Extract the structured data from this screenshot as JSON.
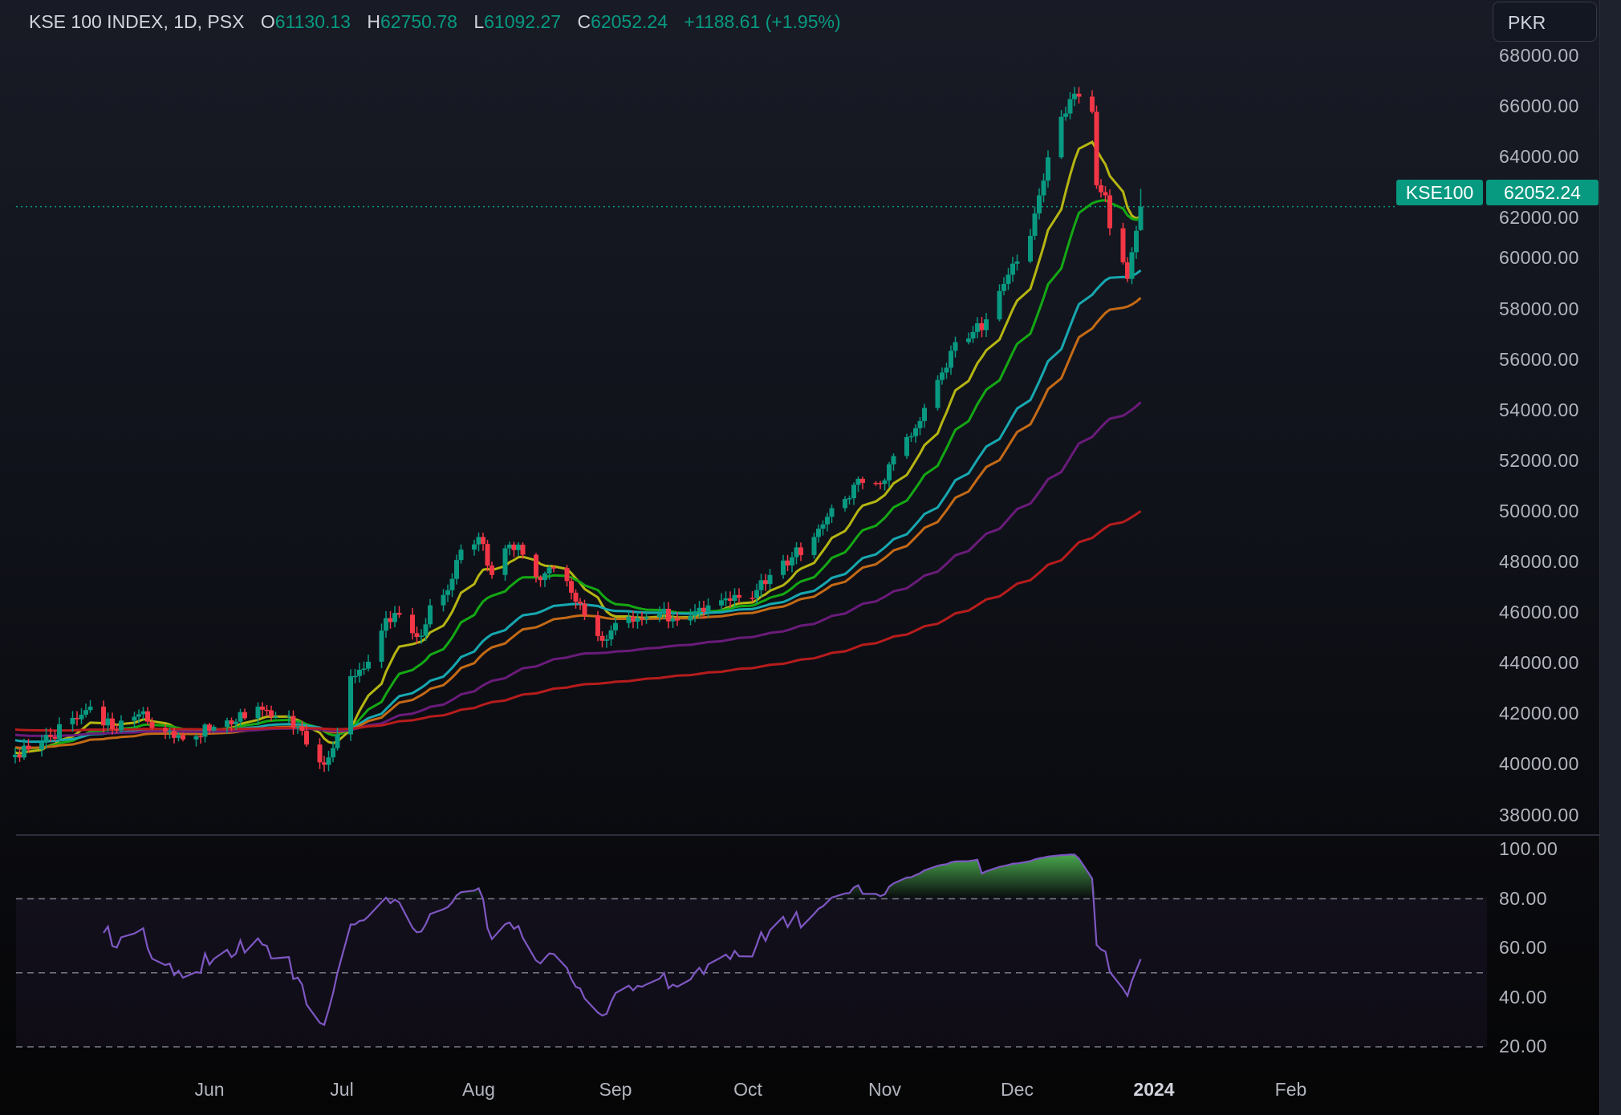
{
  "legend": {
    "symbol": "KSE 100 INDEX, 1D, PSX",
    "o_label": "O",
    "o": "61130.13",
    "h_label": "H",
    "h": "62750.78",
    "l_label": "L",
    "l": "61092.27",
    "c_label": "C",
    "c": "62052.24",
    "change": "+1188.61 (+1.95%)"
  },
  "currency_button": "PKR",
  "last_price": {
    "symbol": "KSE100",
    "value": "62052.24"
  },
  "price_axis": [
    "68000.00",
    "66000.00",
    "64000.00",
    "62000.00",
    "60000.00",
    "58000.00",
    "56000.00",
    "54000.00",
    "52000.00",
    "50000.00",
    "48000.00",
    "46000.00",
    "44000.00",
    "42000.00",
    "40000.00",
    "38000.00"
  ],
  "rsi_axis": [
    "100.00",
    "80.00",
    "60.00",
    "40.00",
    "20.00"
  ],
  "time_axis": [
    {
      "label": "Jun",
      "date": "06-01"
    },
    {
      "label": "Jul",
      "date": "07-01"
    },
    {
      "label": "Aug",
      "date": "08-01"
    },
    {
      "label": "Sep",
      "date": "09-01"
    },
    {
      "label": "Oct",
      "date": "10-01"
    },
    {
      "label": "Nov",
      "date": "11-01"
    },
    {
      "label": "Dec",
      "date": "12-01"
    },
    {
      "label": "2024",
      "date": "13-01",
      "bold": true
    },
    {
      "label": "Feb",
      "date": "14-01"
    }
  ],
  "colors": {
    "up": "#089981",
    "down": "#f23645",
    "rsi": "#7e57c2",
    "ma": [
      "#b5b512",
      "#14a814",
      "#17a8b0",
      "#c46a16",
      "#6a1b7a",
      "#b71c1c"
    ]
  },
  "chart_data": {
    "type": "candlestick",
    "ylim": [
      37000,
      69000
    ],
    "rsi_levels": [
      80,
      50,
      20
    ],
    "ma_periods": [
      10,
      20,
      40,
      50,
      100,
      200
    ],
    "ma_seed": [
      40500,
      40700,
      41000,
      40700,
      41200,
      41400
    ],
    "closes": [
      [
        "04-18",
        40400
      ],
      [
        "04-24",
        40900
      ],
      [
        "05-02",
        41800
      ],
      [
        "05-05",
        42300
      ],
      [
        "05-10",
        41400
      ],
      [
        "05-16",
        42000
      ],
      [
        "05-22",
        41300
      ],
      [
        "05-26",
        41000
      ],
      [
        "06-02",
        41500
      ],
      [
        "06-07",
        41700
      ],
      [
        "06-12",
        42300
      ],
      [
        "06-16",
        41900
      ],
      [
        "06-21",
        41500
      ],
      [
        "06-23",
        40800
      ],
      [
        "06-27",
        40000
      ],
      [
        "06-30",
        41200
      ],
      [
        "07-03",
        43500
      ],
      [
        "07-06",
        43800
      ],
      [
        "07-10",
        45300
      ],
      [
        "07-13",
        46000
      ],
      [
        "07-17",
        45200
      ],
      [
        "07-19",
        45100
      ],
      [
        "07-21",
        46300
      ],
      [
        "07-25",
        46900
      ],
      [
        "07-28",
        48500
      ],
      [
        "08-01",
        49000
      ],
      [
        "08-04",
        47500
      ],
      [
        "08-08",
        48700
      ],
      [
        "08-11",
        48300
      ],
      [
        "08-15",
        47300
      ],
      [
        "08-17",
        47800
      ],
      [
        "08-22",
        46800
      ],
      [
        "08-25",
        45900
      ],
      [
        "08-29",
        44900
      ],
      [
        "09-01",
        45600
      ],
      [
        "09-06",
        45800
      ],
      [
        "09-11",
        46000
      ],
      [
        "09-15",
        45700
      ],
      [
        "09-20",
        46200
      ],
      [
        "09-25",
        46500
      ],
      [
        "09-29",
        46600
      ],
      [
        "10-03",
        46900
      ],
      [
        "10-06",
        47500
      ],
      [
        "10-11",
        48200
      ],
      [
        "10-16",
        49000
      ],
      [
        "10-19",
        49800
      ],
      [
        "10-23",
        50500
      ],
      [
        "10-26",
        51300
      ],
      [
        "10-31",
        51100
      ],
      [
        "11-03",
        52200
      ],
      [
        "11-08",
        53300
      ],
      [
        "11-10",
        54100
      ],
      [
        "11-14",
        55500
      ],
      [
        "11-17",
        56700
      ],
      [
        "11-21",
        57100
      ],
      [
        "11-24",
        57600
      ],
      [
        "11-28",
        59000
      ],
      [
        "11-30",
        59800
      ],
      [
        "12-04",
        60900
      ],
      [
        "12-06",
        62500
      ],
      [
        "12-08",
        64000
      ],
      [
        "12-11",
        65600
      ],
      [
        "12-13",
        66300
      ],
      [
        "12-15",
        66400
      ],
      [
        "12-18",
        65800
      ],
      [
        "12-19",
        62900
      ],
      [
        "12-21",
        62500
      ],
      [
        "12-22",
        61200
      ],
      [
        "12-26",
        59200
      ],
      [
        "12-28",
        61100
      ],
      [
        "12-29",
        62052.24
      ]
    ]
  }
}
